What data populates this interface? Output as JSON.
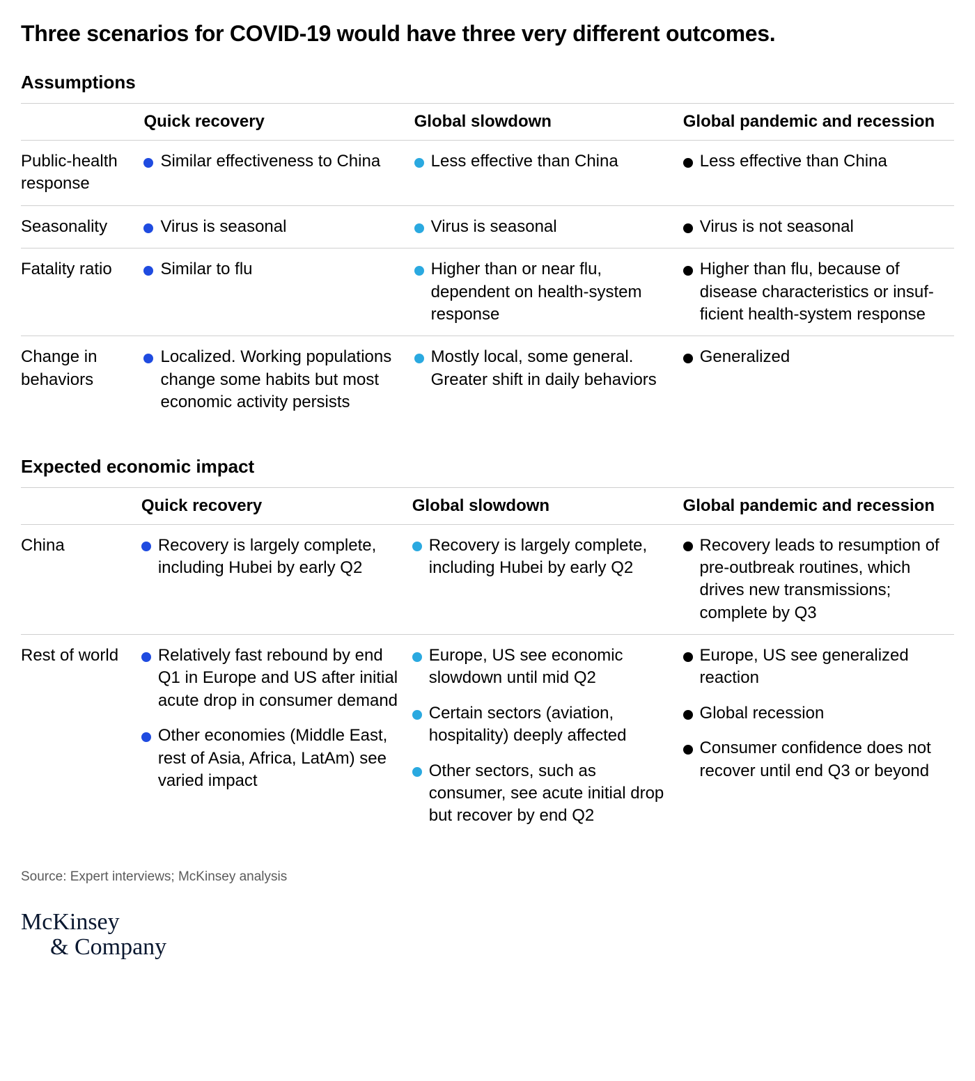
{
  "title": "Three scenarios for COVID-19 would have three very different outcomes.",
  "colors": {
    "quick": "#1f4be0",
    "slowdown": "#2aa9e0",
    "pandemic": "#000000",
    "border": "#cfcfcf",
    "text": "#000000",
    "source": "#5a5a5a",
    "logo": "#0a1830",
    "bg": "#ffffff"
  },
  "fontsizes": {
    "title": 32,
    "section": 26,
    "header": 24,
    "cell": 24,
    "source": 19,
    "logo": 34
  },
  "scenarios": [
    "Quick recovery",
    "Global slowdown",
    "Global pandemic and recession"
  ],
  "sections": [
    {
      "heading": "Assumptions",
      "rows": [
        {
          "label": "Public-health response",
          "cells": [
            [
              "Similar effectiveness to China"
            ],
            [
              "Less effective than China"
            ],
            [
              "Less effective than China"
            ]
          ]
        },
        {
          "label": "Seasonality",
          "cells": [
            [
              "Virus is seasonal"
            ],
            [
              "Virus is seasonal"
            ],
            [
              "Virus is not seasonal"
            ]
          ]
        },
        {
          "label": "Fatality ratio",
          "cells": [
            [
              "Similar to flu"
            ],
            [
              "Higher than or near flu, dependent on health-system response"
            ],
            [
              "Higher than flu, because of disease characteristics or insuf­ficient health-system response"
            ]
          ]
        },
        {
          "label": "Change in behaviors",
          "cells": [
            [
              "Localized. Working populations change some habits but most economic activity persists"
            ],
            [
              "Mostly local, some general. Greater shift in daily behaviors"
            ],
            [
              "Generalized"
            ]
          ]
        }
      ]
    },
    {
      "heading": "Expected economic impact",
      "rows": [
        {
          "label": "China",
          "cells": [
            [
              "Recovery is largely complete, including Hubei by early Q2"
            ],
            [
              "Recovery is largely complete, including Hubei by early Q2"
            ],
            [
              "Recovery leads to resumption of pre-outbreak routines, which drives new transmis­sions; complete by Q3"
            ]
          ]
        },
        {
          "label": "Rest of world",
          "cells": [
            [
              "Relatively fast rebound by end Q1 in Europe and US after initial acute drop in consumer demand",
              "Other economies (Middle East, rest of Asia, Africa, LatAm) see varied impact"
            ],
            [
              "Europe, US see economic slowdown until mid Q2",
              "Certain sectors (aviation, hospitality) deeply affected",
              "Other sectors, such as consumer, see acute initial drop but recover by end Q2"
            ],
            [
              "Europe, US see generalized reaction",
              "Global recession",
              "Consumer confidence does not recover until end Q3 or beyond"
            ]
          ]
        }
      ]
    }
  ],
  "source": "Source: Expert interviews; McKinsey analysis",
  "logo": {
    "line1": "McKinsey",
    "line2": "& Company"
  }
}
